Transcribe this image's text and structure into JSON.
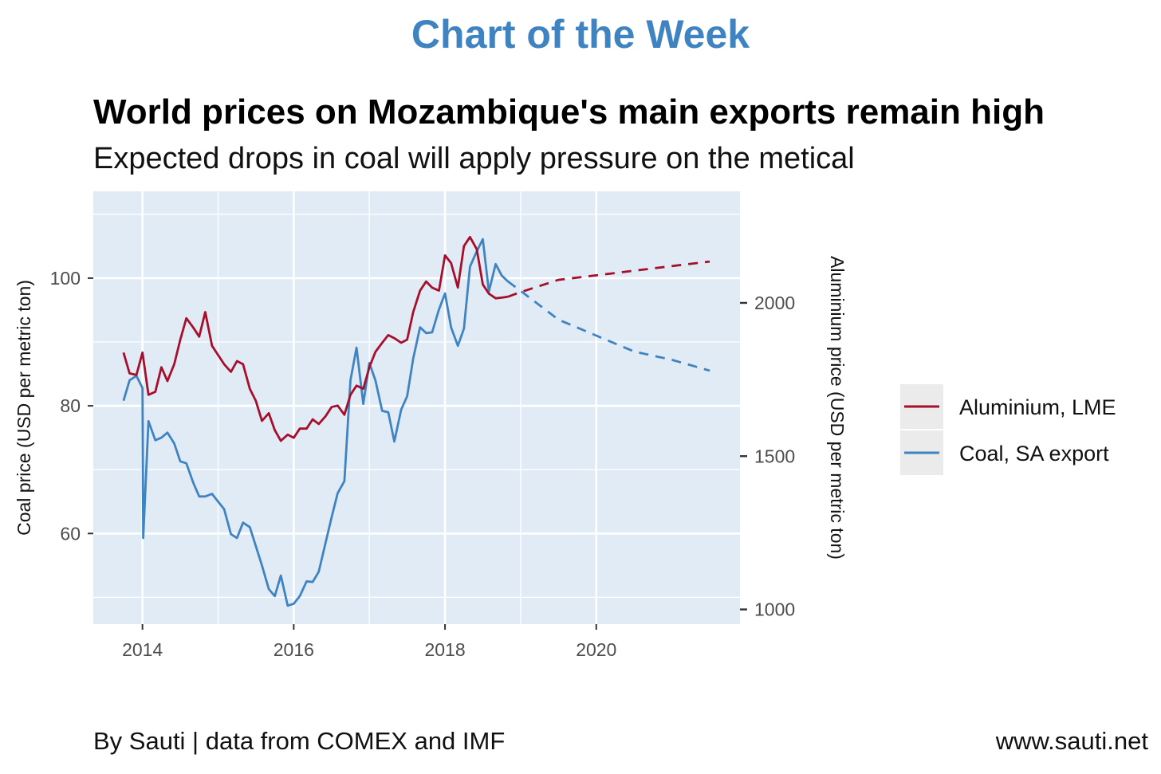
{
  "banner": "Chart of the Week",
  "title": "World prices on Mozambique's main exports remain high",
  "subtitle": "Expected drops in coal will apply pressure on the metical",
  "footer_left": "By Sauti | data from COMEX and IMF",
  "footer_right": "www.sauti.net",
  "chart_data": {
    "type": "line",
    "xlabel": "",
    "ylabel": "Coal price (USD per metric ton)",
    "y2label": "Aluminium price (USD per metric ton)",
    "xlim": [
      2013.35,
      2021.9
    ],
    "ylim": [
      45.8,
      113.6
    ],
    "y2lim": [
      952,
      2364
    ],
    "x_ticks": [
      2014,
      2016,
      2018,
      2020
    ],
    "y_ticks": [
      60,
      80,
      100
    ],
    "y2_ticks": [
      1000,
      1500,
      2000
    ],
    "grid": true,
    "panel_background": "#e1ebf5",
    "legend_position": "right",
    "series": [
      {
        "name": "Aluminium, LME",
        "axis": "right",
        "color": "#a50f2b",
        "actual": [
          [
            2013.75,
            1838
          ],
          [
            2013.83,
            1770
          ],
          [
            2013.92,
            1765
          ],
          [
            2014.0,
            1838
          ],
          [
            2014.08,
            1700
          ],
          [
            2014.17,
            1710
          ],
          [
            2014.25,
            1790
          ],
          [
            2014.33,
            1745
          ],
          [
            2014.42,
            1800
          ],
          [
            2014.5,
            1880
          ],
          [
            2014.58,
            1950
          ],
          [
            2014.67,
            1920
          ],
          [
            2014.75,
            1890
          ],
          [
            2014.83,
            1970
          ],
          [
            2014.92,
            1860
          ],
          [
            2015.0,
            1830
          ],
          [
            2015.08,
            1800
          ],
          [
            2015.17,
            1775
          ],
          [
            2015.25,
            1810
          ],
          [
            2015.33,
            1800
          ],
          [
            2015.42,
            1720
          ],
          [
            2015.5,
            1680
          ],
          [
            2015.58,
            1615
          ],
          [
            2015.67,
            1640
          ],
          [
            2015.75,
            1585
          ],
          [
            2015.83,
            1550
          ],
          [
            2015.92,
            1570
          ],
          [
            2016.0,
            1560
          ],
          [
            2016.08,
            1590
          ],
          [
            2016.17,
            1590
          ],
          [
            2016.25,
            1620
          ],
          [
            2016.33,
            1605
          ],
          [
            2016.42,
            1630
          ],
          [
            2016.5,
            1660
          ],
          [
            2016.58,
            1665
          ],
          [
            2016.67,
            1635
          ],
          [
            2016.75,
            1700
          ],
          [
            2016.83,
            1730
          ],
          [
            2016.92,
            1720
          ],
          [
            2017.0,
            1790
          ],
          [
            2017.08,
            1840
          ],
          [
            2017.17,
            1870
          ],
          [
            2017.25,
            1895
          ],
          [
            2017.33,
            1885
          ],
          [
            2017.42,
            1870
          ],
          [
            2017.5,
            1880
          ],
          [
            2017.58,
            1970
          ],
          [
            2017.67,
            2040
          ],
          [
            2017.75,
            2070
          ],
          [
            2017.83,
            2050
          ],
          [
            2017.92,
            2040
          ],
          [
            2018.0,
            2155
          ],
          [
            2018.08,
            2130
          ],
          [
            2018.17,
            2050
          ],
          [
            2018.25,
            2185
          ],
          [
            2018.33,
            2215
          ],
          [
            2018.42,
            2175
          ],
          [
            2018.5,
            2060
          ],
          [
            2018.58,
            2030
          ],
          [
            2018.67,
            2015
          ],
          [
            2018.75,
            2017
          ],
          [
            2018.83,
            2020
          ]
        ],
        "forecast": [
          [
            2018.83,
            2020
          ],
          [
            2019.0,
            2035
          ],
          [
            2019.5,
            2075
          ],
          [
            2020.0,
            2090
          ],
          [
            2020.5,
            2105
          ],
          [
            2021.0,
            2120
          ],
          [
            2021.5,
            2135
          ]
        ]
      },
      {
        "name": "Coal, SA export",
        "axis": "left",
        "color": "#3f84c1",
        "actual": [
          [
            2013.75,
            80.8
          ],
          [
            2013.83,
            84.0
          ],
          [
            2013.92,
            84.7
          ],
          [
            2014.0,
            82.8
          ],
          [
            2014.01,
            59.3
          ],
          [
            2014.08,
            77.6
          ],
          [
            2014.17,
            74.6
          ],
          [
            2014.25,
            75.0
          ],
          [
            2014.33,
            75.8
          ],
          [
            2014.42,
            74.1
          ],
          [
            2014.5,
            71.3
          ],
          [
            2014.58,
            71.0
          ],
          [
            2014.67,
            68.0
          ],
          [
            2014.75,
            65.8
          ],
          [
            2014.83,
            65.8
          ],
          [
            2014.92,
            66.2
          ],
          [
            2015.0,
            65.0
          ],
          [
            2015.08,
            63.8
          ],
          [
            2015.17,
            59.9
          ],
          [
            2015.25,
            59.3
          ],
          [
            2015.33,
            61.7
          ],
          [
            2015.42,
            61.0
          ],
          [
            2015.5,
            58.0
          ],
          [
            2015.58,
            55.0
          ],
          [
            2015.67,
            51.3
          ],
          [
            2015.75,
            50.2
          ],
          [
            2015.83,
            53.4
          ],
          [
            2015.92,
            48.7
          ],
          [
            2016.0,
            49.0
          ],
          [
            2016.08,
            50.2
          ],
          [
            2016.17,
            52.5
          ],
          [
            2016.25,
            52.4
          ],
          [
            2016.33,
            54.0
          ],
          [
            2016.42,
            58.5
          ],
          [
            2016.5,
            62.5
          ],
          [
            2016.58,
            66.3
          ],
          [
            2016.67,
            68.2
          ],
          [
            2016.75,
            84.0
          ],
          [
            2016.83,
            89.1
          ],
          [
            2016.92,
            80.3
          ],
          [
            2017.0,
            86.7
          ],
          [
            2017.08,
            84.0
          ],
          [
            2017.17,
            79.2
          ],
          [
            2017.25,
            79.0
          ],
          [
            2017.33,
            74.4
          ],
          [
            2017.42,
            79.4
          ],
          [
            2017.5,
            81.5
          ],
          [
            2017.58,
            87.4
          ],
          [
            2017.67,
            92.3
          ],
          [
            2017.75,
            91.4
          ],
          [
            2017.83,
            91.5
          ],
          [
            2017.92,
            95.1
          ],
          [
            2018.0,
            97.6
          ],
          [
            2018.08,
            92.3
          ],
          [
            2018.17,
            89.4
          ],
          [
            2018.25,
            92.1
          ],
          [
            2018.33,
            101.8
          ],
          [
            2018.42,
            104.2
          ],
          [
            2018.5,
            106.1
          ],
          [
            2018.58,
            97.9
          ],
          [
            2018.67,
            102.2
          ],
          [
            2018.75,
            100.4
          ],
          [
            2018.83,
            99.5
          ]
        ],
        "forecast": [
          [
            2018.83,
            99.5
          ],
          [
            2019.0,
            98.0
          ],
          [
            2019.5,
            93.5
          ],
          [
            2020.0,
            91.0
          ],
          [
            2020.5,
            88.5
          ],
          [
            2021.0,
            87.2
          ],
          [
            2021.5,
            85.5
          ]
        ]
      }
    ]
  }
}
